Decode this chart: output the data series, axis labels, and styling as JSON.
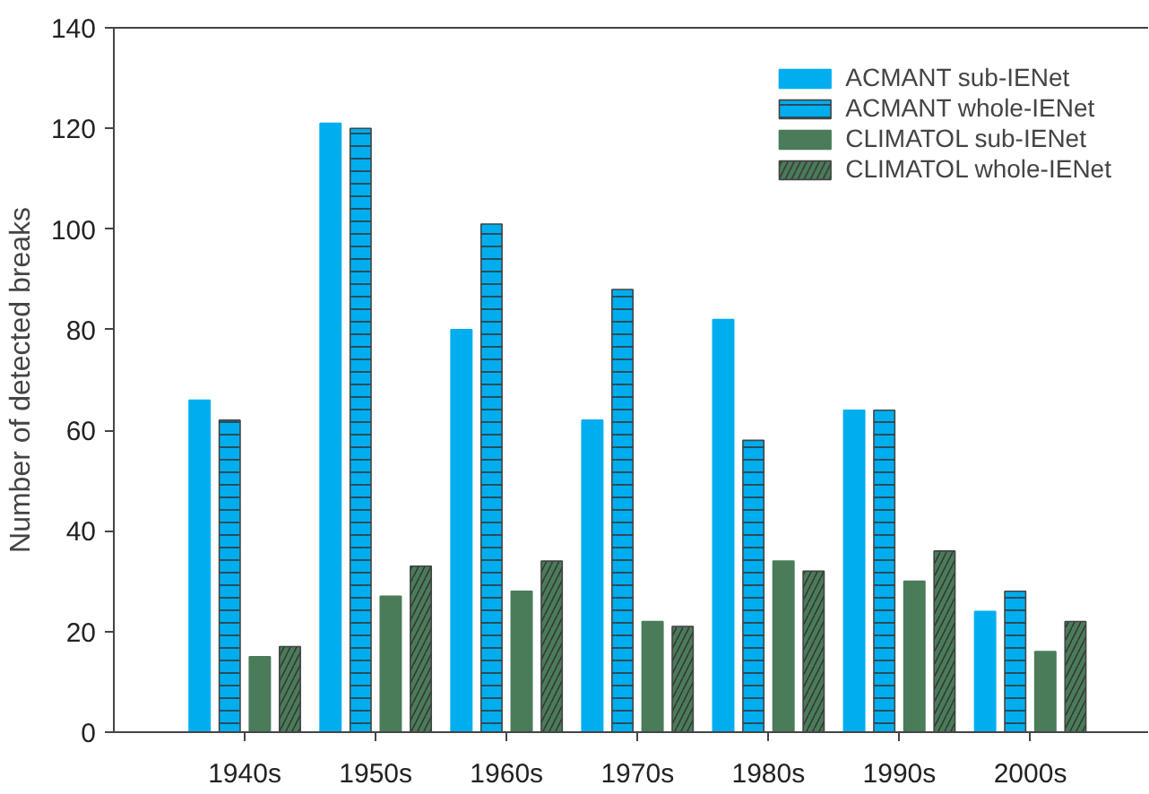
{
  "chart_data": {
    "type": "bar",
    "ylabel": "Number of detected breaks",
    "categories": [
      "1940s",
      "1950s",
      "1960s",
      "1970s",
      "1980s",
      "1990s",
      "2000s"
    ],
    "series": [
      {
        "name": "ACMANT sub-IENet",
        "color": "#00aeef",
        "values": [
          66,
          121,
          80,
          62,
          82,
          64,
          24
        ]
      },
      {
        "name": "ACMANT whole-IENet",
        "color": "#00aeef",
        "values": [
          62,
          120,
          101,
          88,
          58,
          64,
          28
        ]
      },
      {
        "name": "CLIMATOL sub-IENet",
        "color": "#4a7c59",
        "values": [
          15,
          27,
          28,
          22,
          34,
          30,
          16
        ]
      },
      {
        "name": "CLIMATOL whole-IENet",
        "color": "#4a7c59",
        "values": [
          17,
          33,
          34,
          21,
          32,
          36,
          22
        ]
      }
    ],
    "ylim": [
      0,
      140
    ],
    "yticks": [
      0,
      20,
      40,
      60,
      80,
      100,
      120,
      140
    ],
    "grid": false,
    "legend": "top right"
  }
}
